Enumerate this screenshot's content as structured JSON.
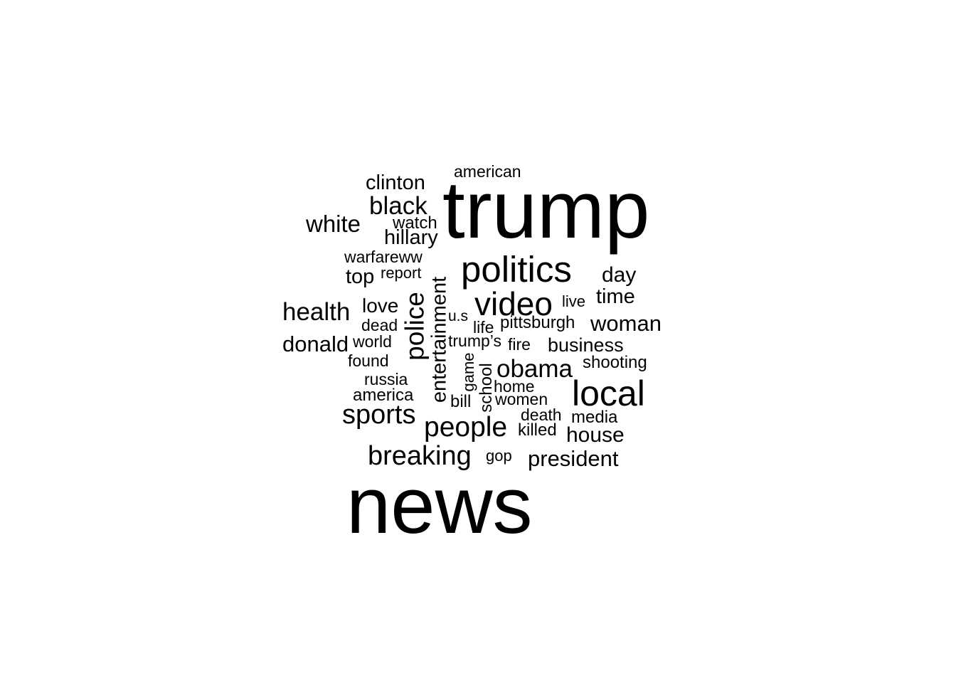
{
  "wordcloud": {
    "text_color": "#000000",
    "background": "#ffffff",
    "words": {
      "news": "news",
      "trump": "trump",
      "politics": "politics",
      "video": "video",
      "local": "local",
      "police": "police",
      "entertainment": "entertainment",
      "people": "people",
      "sports": "sports",
      "breaking": "breaking",
      "obama": "obama",
      "black": "black",
      "health": "health",
      "white": "white",
      "donald": "donald",
      "woman": "woman",
      "clinton": "clinton",
      "house": "house",
      "president": "president",
      "day": "day",
      "time": "time",
      "hillary": "hillary",
      "business": "business",
      "love": "love",
      "top": "top",
      "american": "american",
      "watch": "watch",
      "warfareww": "warfareww",
      "report": "report",
      "u_s": "u.s",
      "live": "live",
      "pittsburgh": "pittsburgh",
      "life": "life",
      "dead": "dead",
      "world": "world",
      "trumps": "trump’s",
      "fire": "fire",
      "found": "found",
      "shooting": "shooting",
      "game": "game",
      "school": "school",
      "russia": "russia",
      "home": "home",
      "america": "america",
      "bill": "bill",
      "women": "women",
      "death": "death",
      "media": "media",
      "killed": "killed",
      "gop": "gop"
    }
  }
}
